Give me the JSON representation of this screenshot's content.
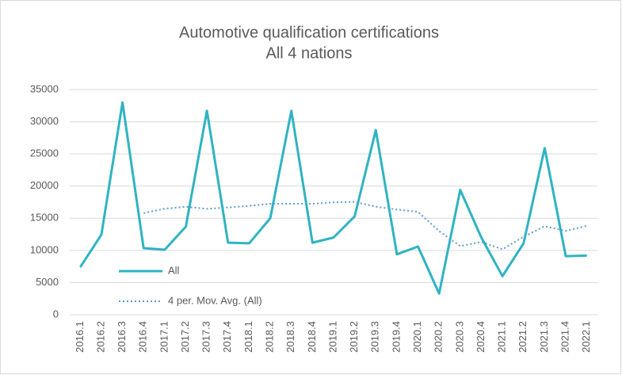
{
  "chart_data": {
    "type": "line",
    "title": "Automotive qualification certifications",
    "subtitle": "All 4 nations",
    "categories": [
      "2016.1",
      "2016.2",
      "2016.3",
      "2016.4",
      "2017.1",
      "2017.2",
      "2017.3",
      "2017.4",
      "2018.1",
      "2018.2",
      "2018.3",
      "2018.4",
      "2019.1",
      "2019.2",
      "2019.3",
      "2019.4",
      "2020.1",
      "2020.2",
      "2020.3",
      "2020.4",
      "2021.1",
      "2021.2",
      "2021.3",
      "2021.4",
      "2022.1"
    ],
    "series": [
      {
        "name": "All",
        "color": "#2fb3c2",
        "dash": false,
        "values": [
          7400,
          12450,
          33000,
          10350,
          10100,
          13700,
          31700,
          11200,
          11100,
          15000,
          31700,
          11200,
          12000,
          15300,
          28700,
          9400,
          10600,
          3300,
          19400,
          12000,
          6000,
          11100,
          25900,
          9100,
          9200
        ]
      },
      {
        "name": "4 per. Mov. Avg. (All)",
        "color": "#5b9bd5",
        "dash": true,
        "values": [
          null,
          null,
          null,
          15800,
          16475,
          16788,
          16463,
          16675,
          16925,
          17250,
          17250,
          17250,
          17475,
          17550,
          16800,
          16350,
          16000,
          13000,
          10675,
          11325,
          10175,
          12125,
          13750,
          13025,
          13825
        ]
      }
    ],
    "ylim": [
      0,
      35000
    ],
    "yticks": [
      0,
      5000,
      10000,
      15000,
      20000,
      25000,
      30000,
      35000
    ],
    "grid": true,
    "legend": "lower-left"
  }
}
